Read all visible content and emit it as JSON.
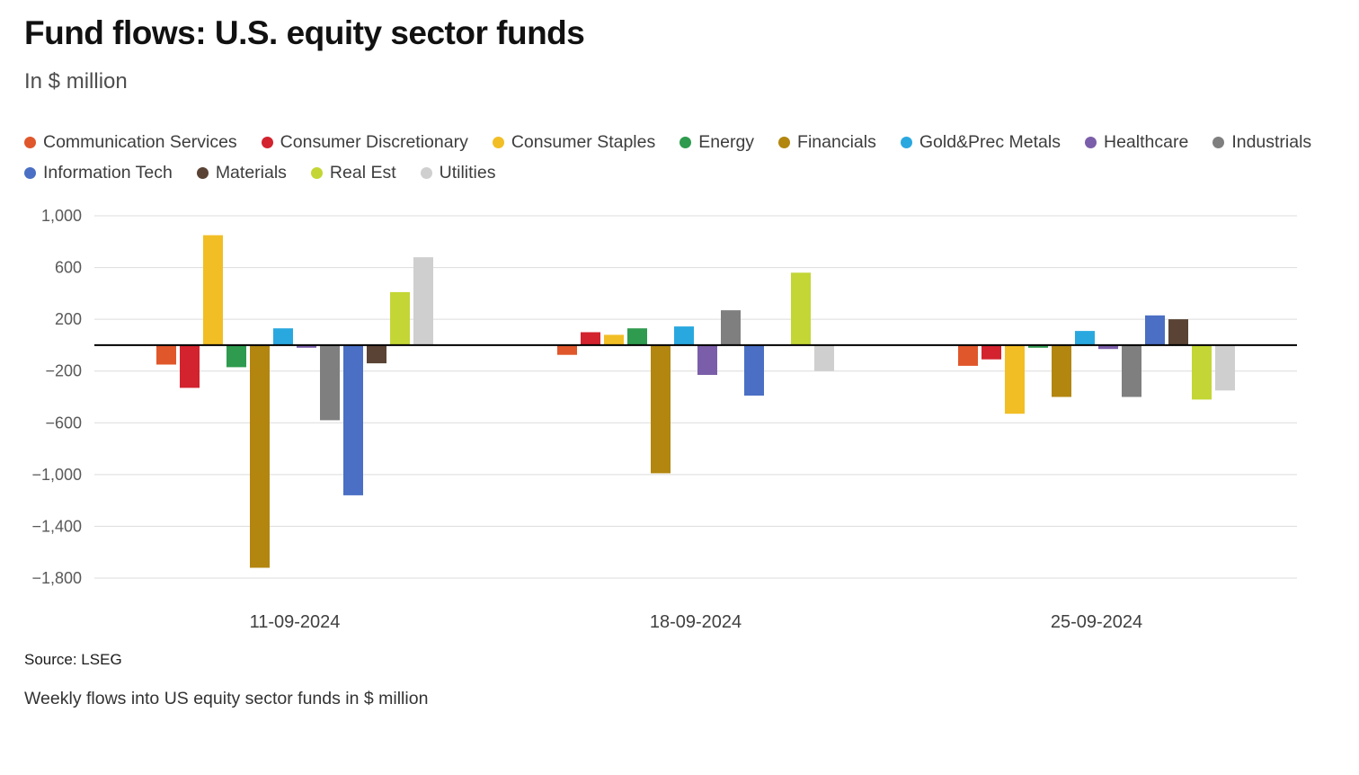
{
  "title": "Fund flows: U.S. equity sector funds",
  "subtitle": "In $ million",
  "source": "Source: LSEG",
  "caption": "Weekly flows into US equity sector funds in $ million",
  "chart_data": {
    "type": "bar",
    "title": "Fund flows: U.S. equity sector funds",
    "subtitle": "In $ million",
    "categories": [
      "11-09-2024",
      "18-09-2024",
      "25-09-2024"
    ],
    "ylim": [
      -1800,
      1000
    ],
    "yticks": [
      1000,
      600,
      200,
      -200,
      -600,
      -1000,
      -1400,
      -1800
    ],
    "grid": true,
    "legend_position": "top",
    "zero_line_color": "#000000",
    "series": [
      {
        "name": "Communication Services",
        "color": "#E0572B",
        "values": [
          -150,
          -75,
          -160
        ]
      },
      {
        "name": "Consumer Discretionary",
        "color": "#D2232E",
        "values": [
          -330,
          100,
          -110
        ]
      },
      {
        "name": "Consumer Staples",
        "color": "#F2BE25",
        "values": [
          850,
          80,
          -530
        ]
      },
      {
        "name": "Energy",
        "color": "#2E9B4E",
        "values": [
          -170,
          130,
          -20
        ]
      },
      {
        "name": "Financials",
        "color": "#B2860F",
        "values": [
          -1720,
          -990,
          -400
        ]
      },
      {
        "name": "Gold&Prec Metals",
        "color": "#29A8E0",
        "values": [
          130,
          145,
          110
        ]
      },
      {
        "name": "Healthcare",
        "color": "#7B5EA9",
        "values": [
          -20,
          -230,
          -30
        ]
      },
      {
        "name": "Industrials",
        "color": "#7F7F7F",
        "values": [
          -580,
          270,
          -400
        ]
      },
      {
        "name": "Information Tech",
        "color": "#4A6FC4",
        "values": [
          -1160,
          -390,
          230
        ]
      },
      {
        "name": "Materials",
        "color": "#5A4334",
        "values": [
          -140,
          0,
          200
        ]
      },
      {
        "name": "Real Est",
        "color": "#C3D635",
        "values": [
          410,
          560,
          -420
        ]
      },
      {
        "name": "Utilities",
        "color": "#CFCFCF",
        "values": [
          680,
          -200,
          -350
        ]
      }
    ]
  }
}
